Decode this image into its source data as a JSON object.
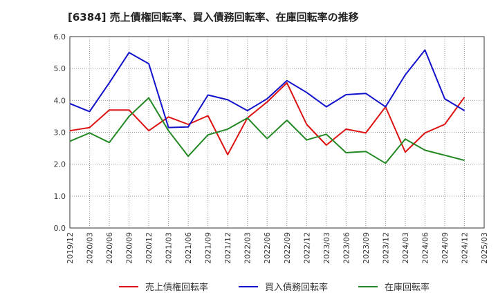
{
  "chart_data": {
    "type": "line",
    "title": "[6384]  売上債権回転率、買入債務回転率、在庫回転率の推移",
    "xlabel": "",
    "ylabel": "",
    "ylim": [
      0,
      6
    ],
    "yticks": [
      "0.0",
      "1.0",
      "2.0",
      "3.0",
      "4.0",
      "5.0",
      "6.0"
    ],
    "grid": true,
    "legend_position": "bottom",
    "x_tick_labels": [
      "2019/12",
      "2020/03",
      "2020/06",
      "2020/09",
      "2020/12",
      "2021/03",
      "2021/06",
      "2021/09",
      "2021/12",
      "2022/03",
      "2022/06",
      "2022/09",
      "2022/12",
      "2023/03",
      "2023/06",
      "2023/09",
      "2023/12",
      "2024/03",
      "2024/06",
      "2024/09",
      "2024/12",
      "2025/03"
    ],
    "categories": [
      "2019/12",
      "2020/03",
      "2020/06",
      "2020/09",
      "2020/12",
      "2021/03",
      "2021/06",
      "2021/09",
      "2021/12",
      "2022/03",
      "2022/06",
      "2022/09",
      "2022/12",
      "2023/03",
      "2023/06",
      "2023/09",
      "2023/12",
      "2024/03",
      "2024/06",
      "2024/09",
      "2024/12"
    ],
    "series": [
      {
        "name": "売上債権回転率",
        "color": "#dd1111",
        "values": [
          3.05,
          3.15,
          3.7,
          3.7,
          3.05,
          3.48,
          3.25,
          3.52,
          2.3,
          3.45,
          3.95,
          4.55,
          3.25,
          2.6,
          3.1,
          2.98,
          3.8,
          2.38,
          2.98,
          3.25,
          4.1
        ]
      },
      {
        "name": "買入債務回転率",
        "color": "#1111cc",
        "values": [
          3.9,
          3.65,
          4.55,
          5.5,
          5.15,
          3.15,
          3.17,
          4.17,
          4.02,
          3.68,
          4.05,
          4.62,
          4.25,
          3.8,
          4.18,
          4.22,
          3.8,
          4.8,
          5.58,
          4.05,
          3.68
        ]
      },
      {
        "name": "在庫回転率",
        "color": "#228822",
        "values": [
          2.72,
          2.98,
          2.68,
          3.5,
          4.08,
          3.05,
          2.25,
          2.92,
          3.1,
          3.45,
          2.8,
          3.38,
          2.76,
          2.94,
          2.36,
          2.4,
          2.03,
          2.79,
          2.44,
          2.28,
          2.12
        ]
      }
    ]
  }
}
